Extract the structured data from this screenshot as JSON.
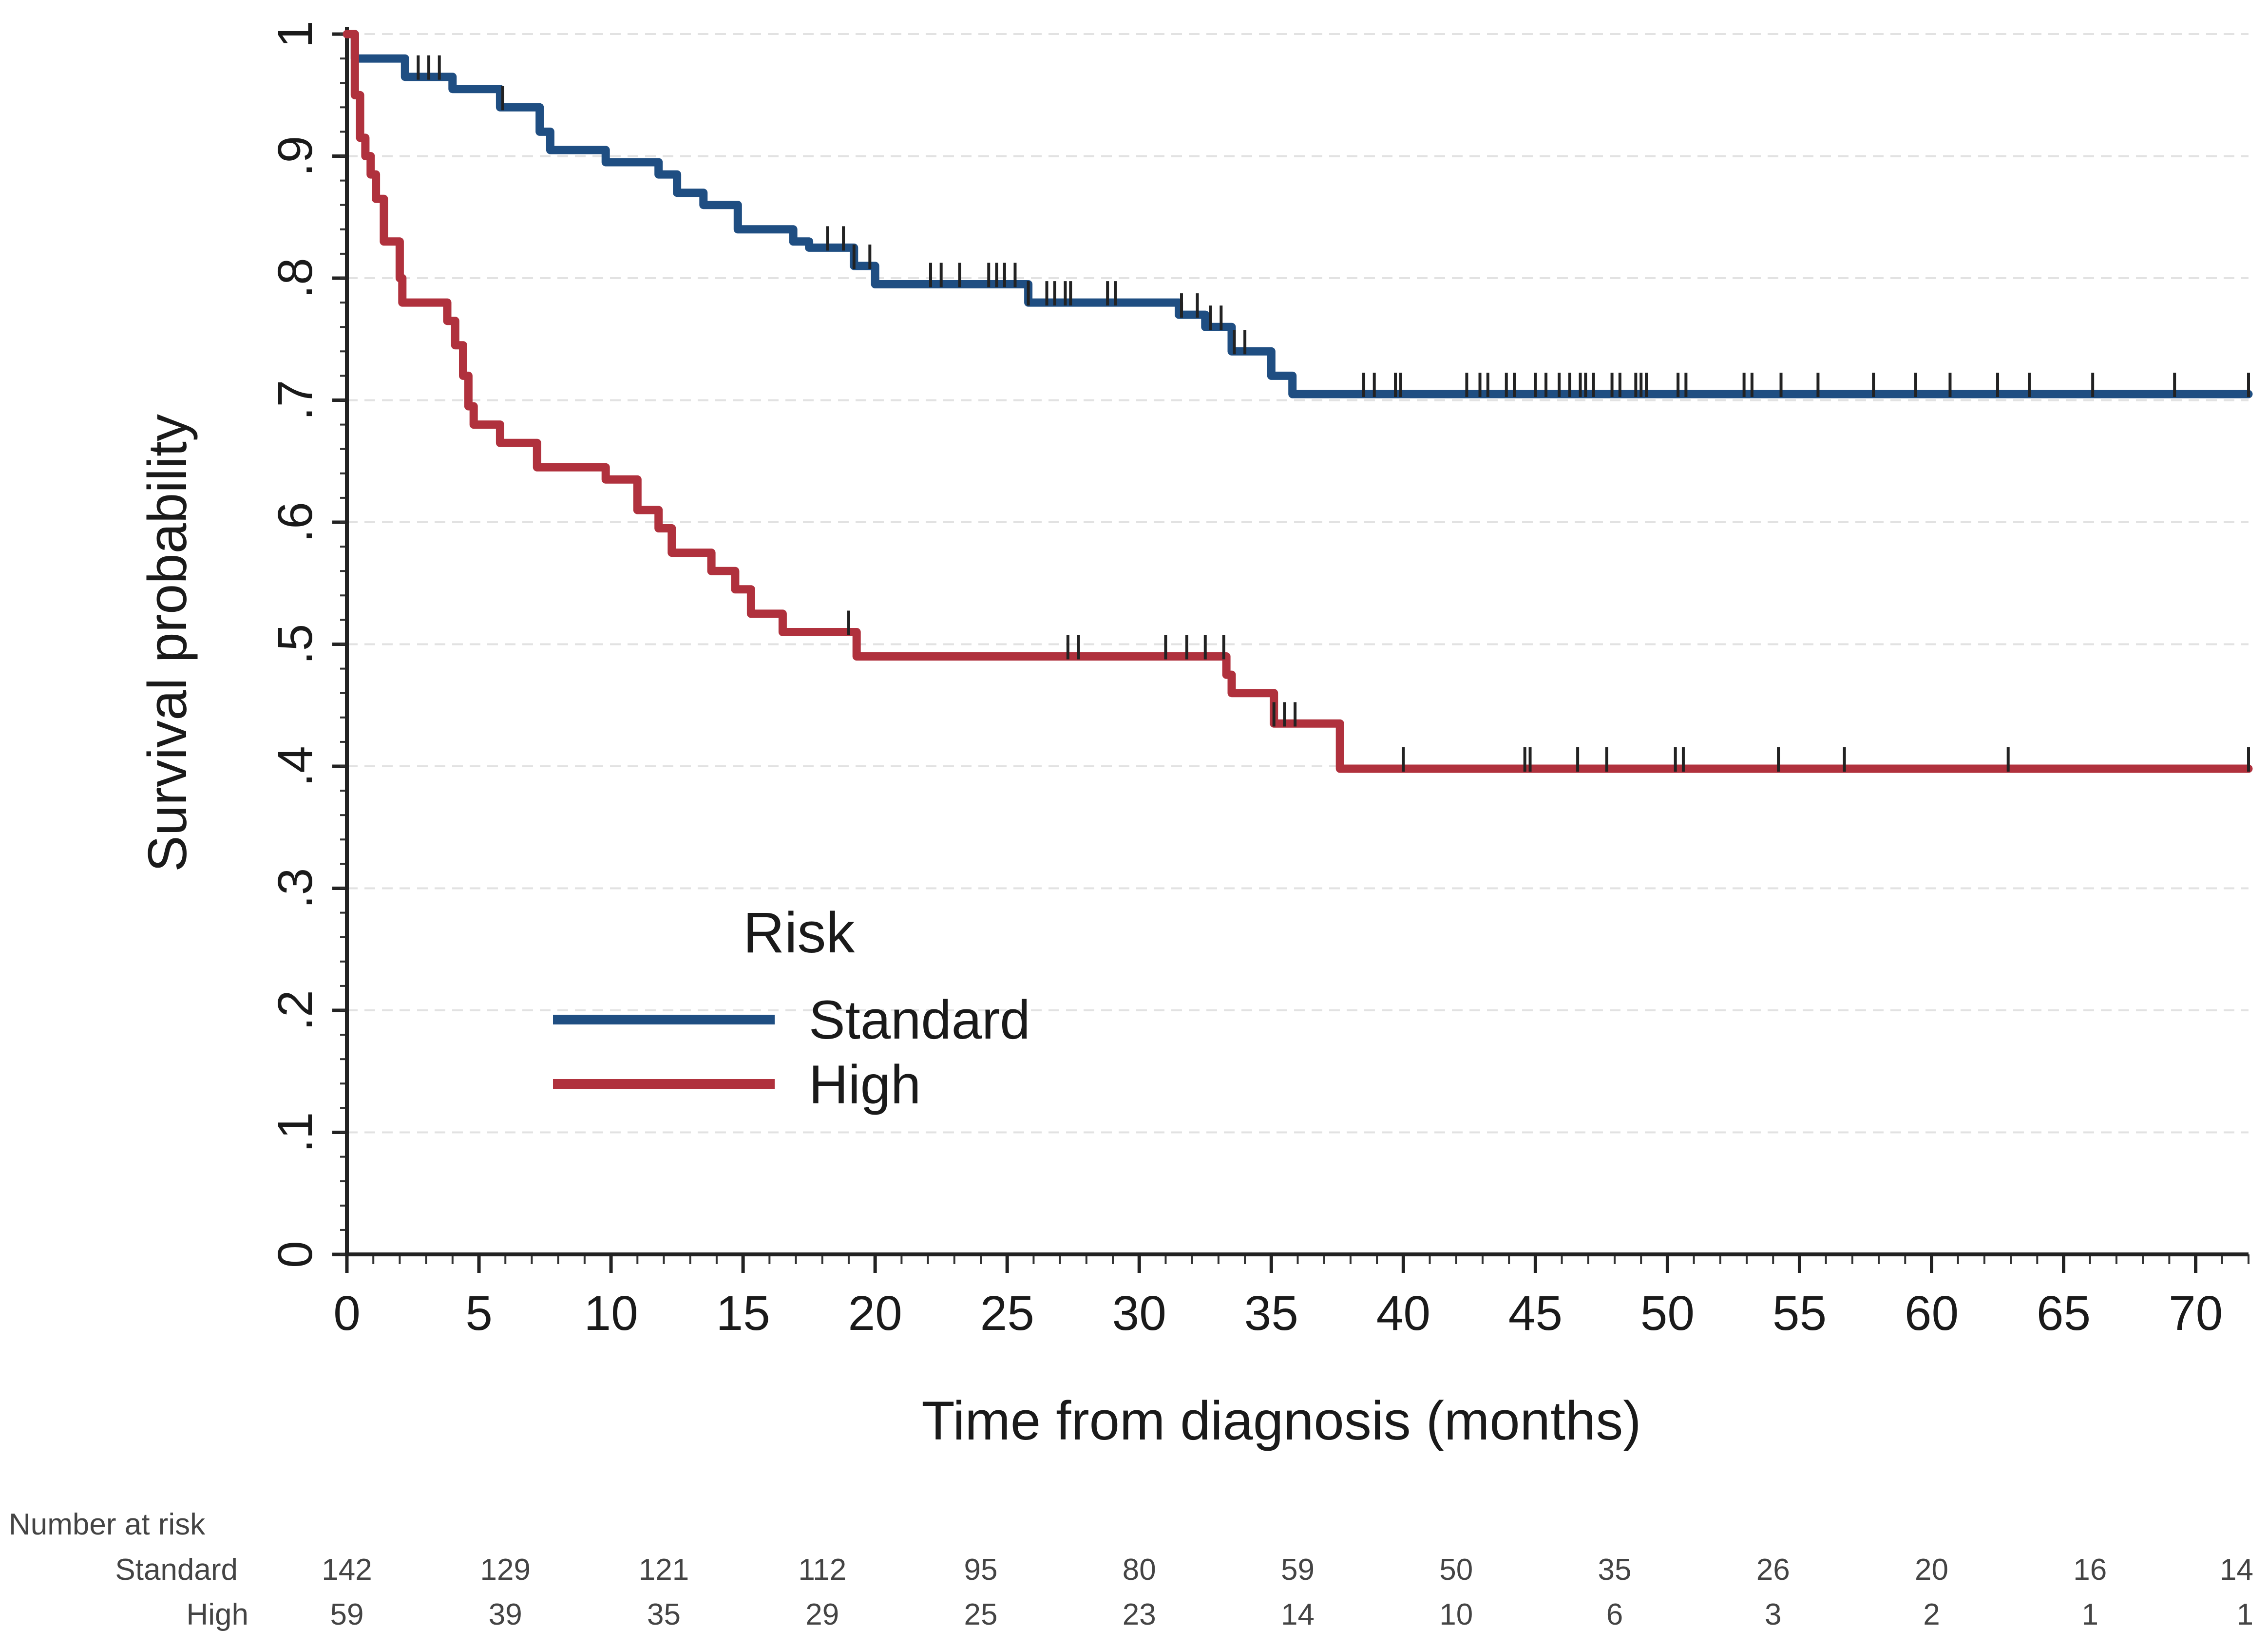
{
  "chart_data": {
    "type": "line",
    "subtype": "kaplan-meier",
    "xlabel": "Time from diagnosis (months)",
    "ylabel": "Survival probability",
    "xlim": [
      0,
      72
    ],
    "ylim": [
      0,
      1
    ],
    "xticks": [
      0,
      5,
      10,
      15,
      20,
      25,
      30,
      35,
      40,
      45,
      50,
      55,
      60,
      65,
      70
    ],
    "xtick_labels": [
      "0",
      "5",
      "10",
      "15",
      "20",
      "25",
      "30",
      "35",
      "40",
      "45",
      "50",
      "55",
      "60",
      "65",
      "70"
    ],
    "yticks": [
      0,
      0.1,
      0.2,
      0.3,
      0.4,
      0.5,
      0.6,
      0.7,
      0.8,
      0.9,
      1
    ],
    "ytick_labels": [
      "0",
      ".1",
      ".2",
      ".3",
      ".4",
      ".5",
      ".6",
      ".7",
      ".8",
      ".9",
      "1"
    ],
    "legend": {
      "title": "Risk",
      "placement": "lower-left",
      "entries": [
        "Standard",
        "High"
      ]
    },
    "series": [
      {
        "name": "Standard",
        "color": "#1f4e82",
        "steps": [
          [
            0,
            1
          ],
          [
            0.3,
            0.98
          ],
          [
            2.2,
            0.965
          ],
          [
            4,
            0.955
          ],
          [
            5.8,
            0.94
          ],
          [
            7.3,
            0.92
          ],
          [
            7.7,
            0.905
          ],
          [
            9.8,
            0.895
          ],
          [
            11.8,
            0.885
          ],
          [
            12.5,
            0.87
          ],
          [
            13.5,
            0.86
          ],
          [
            14.8,
            0.84
          ],
          [
            16.9,
            0.83
          ],
          [
            17.5,
            0.825
          ],
          [
            19.2,
            0.81
          ],
          [
            20,
            0.795
          ],
          [
            25.8,
            0.78
          ],
          [
            31.5,
            0.77
          ],
          [
            32.5,
            0.76
          ],
          [
            33.5,
            0.74
          ],
          [
            35,
            0.72
          ],
          [
            35.8,
            0.705
          ],
          [
            72,
            0.705
          ]
        ],
        "censor_times": [
          2.7,
          3.1,
          3.5,
          5.9,
          18.2,
          18.8,
          19.2,
          19.8,
          22.1,
          22.5,
          23.2,
          24.3,
          24.6,
          24.9,
          25.3,
          25.8,
          26.5,
          26.8,
          27.2,
          27.4,
          28.8,
          29.1,
          31.6,
          32.2,
          32.7,
          33.1,
          33.6,
          34.0,
          38.5,
          38.9,
          39.7,
          39.9,
          42.4,
          42.9,
          43.2,
          43.9,
          44.2,
          45.0,
          45.4,
          45.9,
          46.3,
          46.7,
          46.9,
          47.2,
          47.9,
          48.2,
          48.8,
          49.0,
          49.2,
          50.4,
          50.7,
          52.9,
          53.2,
          54.3,
          55.7,
          57.8,
          59.4,
          60.7,
          62.5,
          63.7,
          66.1,
          69.2,
          72.0
        ]
      },
      {
        "name": "High",
        "color": "#b0313d",
        "steps": [
          [
            0,
            1
          ],
          [
            0.3,
            0.95
          ],
          [
            0.5,
            0.915
          ],
          [
            0.7,
            0.9
          ],
          [
            0.9,
            0.885
          ],
          [
            1.1,
            0.865
          ],
          [
            1.4,
            0.83
          ],
          [
            2.0,
            0.8
          ],
          [
            2.1,
            0.78
          ],
          [
            3.8,
            0.765
          ],
          [
            4.1,
            0.745
          ],
          [
            4.4,
            0.72
          ],
          [
            4.6,
            0.695
          ],
          [
            4.8,
            0.68
          ],
          [
            5.8,
            0.665
          ],
          [
            7.2,
            0.645
          ],
          [
            9.8,
            0.635
          ],
          [
            11.0,
            0.61
          ],
          [
            11.8,
            0.595
          ],
          [
            12.3,
            0.575
          ],
          [
            13.8,
            0.56
          ],
          [
            14.7,
            0.545
          ],
          [
            15.3,
            0.525
          ],
          [
            16.5,
            0.51
          ],
          [
            19.3,
            0.49
          ],
          [
            33.3,
            0.475
          ],
          [
            33.5,
            0.46
          ],
          [
            35.1,
            0.435
          ],
          [
            37.6,
            0.398
          ],
          [
            72,
            0.398
          ]
        ],
        "censor_times": [
          19.0,
          27.3,
          27.7,
          31.0,
          31.8,
          32.5,
          33.2,
          35.1,
          35.5,
          35.9,
          40.0,
          44.6,
          44.8,
          46.6,
          47.7,
          50.3,
          50.6,
          54.2,
          56.7,
          62.9,
          72.0
        ]
      }
    ],
    "number_at_risk": {
      "title": "Number at risk",
      "times": [
        0,
        6,
        12,
        18,
        24,
        30,
        36,
        42,
        48,
        54,
        60,
        66,
        72
      ],
      "rows": [
        {
          "label": "Standard",
          "values": [
            "142",
            "129",
            "121",
            "112",
            "95",
            "80",
            "59",
            "50",
            "35",
            "26",
            "20",
            "16",
            "14"
          ]
        },
        {
          "label": "High",
          "values": [
            "59",
            "39",
            "35",
            "29",
            "25",
            "23",
            "14",
            "10",
            "6",
            "3",
            "2",
            "1",
            "1"
          ]
        }
      ]
    }
  }
}
